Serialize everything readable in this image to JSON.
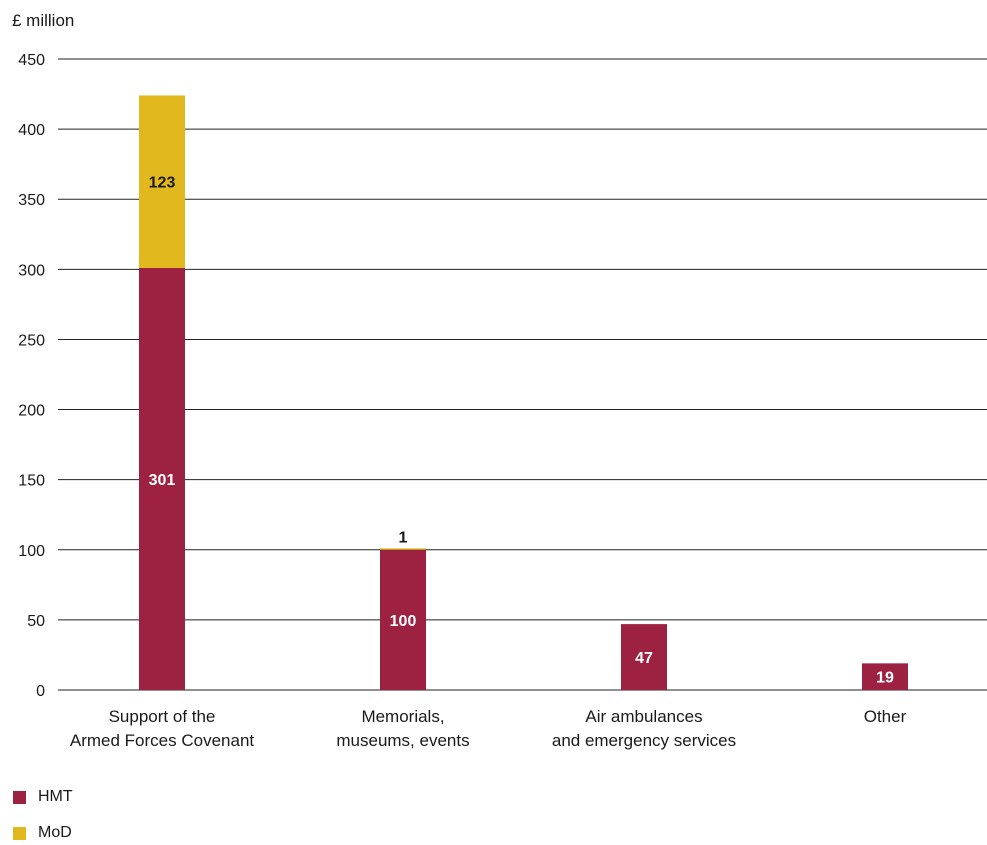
{
  "colors": {
    "hmt": "#9d2241",
    "mod": "#e1b81e",
    "grid": "#222222",
    "label_dark": "#1a1a1a",
    "label_light": "#ffffff"
  },
  "chart_data": {
    "type": "bar",
    "stacked": true,
    "ylabel": "£ million",
    "ylim": [
      0,
      450
    ],
    "yticks": [
      0,
      50,
      100,
      150,
      200,
      250,
      300,
      350,
      400,
      450
    ],
    "grid": true,
    "legend_position": "bottom-left",
    "categories": [
      [
        "Support of the",
        "Armed Forces Covenant"
      ],
      [
        "Memorials,",
        "museums, events"
      ],
      [
        "Air ambulances",
        "and emergency services"
      ],
      [
        "Other"
      ]
    ],
    "series": [
      {
        "name": "HMT",
        "color": "#9d2241",
        "values": [
          301,
          100,
          47,
          19
        ],
        "labels": [
          "301",
          "100",
          "47",
          "19"
        ]
      },
      {
        "name": "MoD",
        "color": "#e1b81e",
        "values": [
          123,
          1,
          0,
          0
        ],
        "labels": [
          "123",
          "1",
          "",
          ""
        ]
      }
    ]
  }
}
